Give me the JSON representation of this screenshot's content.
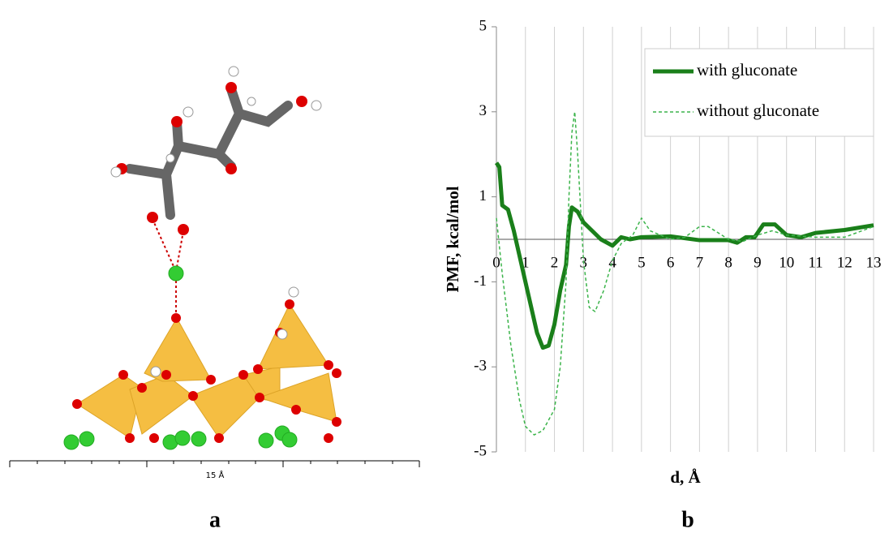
{
  "chart_data": {
    "type": "line",
    "ylabel": "PMF, kcal/mol",
    "xlabel": "d, Å",
    "xlim": [
      0,
      13
    ],
    "xticks": [
      0,
      1,
      2,
      3,
      4,
      5,
      6,
      7,
      8,
      9,
      10,
      11,
      12,
      13
    ],
    "ylim": [
      -5,
      5
    ],
    "yticks": [
      5,
      3,
      1,
      -1,
      -3,
      -5
    ],
    "grid": true,
    "legend": "upper right",
    "series": [
      {
        "name": "with gluconate",
        "color": "#1a7f1a",
        "style": "solid",
        "x": [
          0,
          0.1,
          0.2,
          0.4,
          0.6,
          0.8,
          1.0,
          1.2,
          1.4,
          1.6,
          1.8,
          2.0,
          2.2,
          2.4,
          2.5,
          2.6,
          2.8,
          3.0,
          3.3,
          3.6,
          4.0,
          4.3,
          4.6,
          5.0,
          6.0,
          7.0,
          8.0,
          8.3,
          8.6,
          8.9,
          9.2,
          9.6,
          10.0,
          10.5,
          11.0,
          12.0,
          13.0
        ],
        "values": [
          1.8,
          1.7,
          0.8,
          0.7,
          0.2,
          -0.4,
          -1.0,
          -1.6,
          -2.2,
          -2.55,
          -2.5,
          -2.0,
          -1.2,
          -0.6,
          0.3,
          0.75,
          0.65,
          0.4,
          0.2,
          0.0,
          -0.15,
          0.05,
          0.0,
          0.05,
          0.07,
          -0.02,
          -0.02,
          -0.08,
          0.05,
          0.05,
          0.35,
          0.35,
          0.1,
          0.05,
          0.15,
          0.22,
          0.33
        ]
      },
      {
        "name": "without gluconate",
        "color": "#3cb44b",
        "style": "dashed",
        "x": [
          0,
          0.2,
          0.5,
          0.8,
          1.0,
          1.3,
          1.6,
          2.0,
          2.2,
          2.4,
          2.5,
          2.6,
          2.7,
          2.8,
          3.0,
          3.2,
          3.4,
          3.7,
          4.0,
          4.3,
          4.7,
          5.0,
          5.3,
          6.0,
          6.5,
          7.0,
          7.3,
          8.0,
          8.5,
          9.0,
          9.5,
          10.0,
          11.0,
          12.0,
          13.0
        ],
        "values": [
          0.5,
          -0.8,
          -2.5,
          -3.8,
          -4.4,
          -4.6,
          -4.5,
          -4.0,
          -3.0,
          -1.0,
          1.0,
          2.5,
          3.0,
          2.0,
          -0.5,
          -1.6,
          -1.7,
          -1.2,
          -0.5,
          -0.1,
          0.1,
          0.5,
          0.2,
          0.0,
          0.05,
          0.3,
          0.3,
          0.0,
          -0.05,
          0.1,
          0.2,
          0.1,
          0.05,
          0.05,
          0.3
        ]
      }
    ]
  },
  "panel_a": {
    "scale_label": "15 Å",
    "label": "a"
  },
  "panel_b": {
    "label": "b"
  }
}
